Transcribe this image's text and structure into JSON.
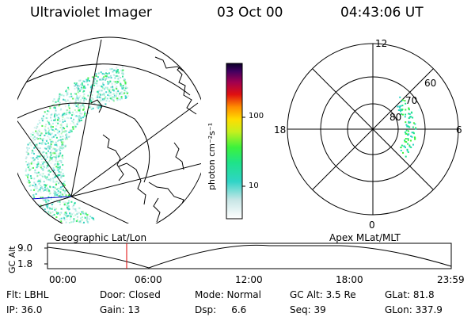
{
  "header": {
    "title": "Ultraviolet Imager",
    "date": "03 Oct 00",
    "time": "04:43:06 UT"
  },
  "colorbar": {
    "unit_label": "photon cm⁻²s⁻¹",
    "ticks": [
      "100",
      "10"
    ]
  },
  "polar_plot": {
    "mlt_labels": [
      "12",
      "18",
      "6",
      "0"
    ],
    "lat_labels": [
      "60",
      "70",
      "80"
    ]
  },
  "map_labels": {
    "geographic": "Geographic Lat/Lon",
    "apex": "Apex MLat/MLT"
  },
  "altitude_strip": {
    "y_label": "GC Alt",
    "y_ticks": [
      "9.0",
      "1.8"
    ],
    "x_ticks": [
      "00:00",
      "06:00",
      "12:00",
      "18:00",
      "23:59"
    ]
  },
  "info": {
    "row1": {
      "filter": "Flt: LBHL",
      "door": "Door: Closed",
      "mode": "Mode: Normal",
      "gc_alt": "GC Alt: 3.5 Re",
      "glat": "GLat: 81.8"
    },
    "row2": {
      "ip": "IP: 36.0",
      "gain": "Gain: 13",
      "dsp": "Dsp:     6.6",
      "seq": "Seq: 39",
      "glon": "GLon: 337.9"
    }
  },
  "colors": {
    "current_time_marker": "#e00000",
    "longitude_line": "#0000cc"
  }
}
